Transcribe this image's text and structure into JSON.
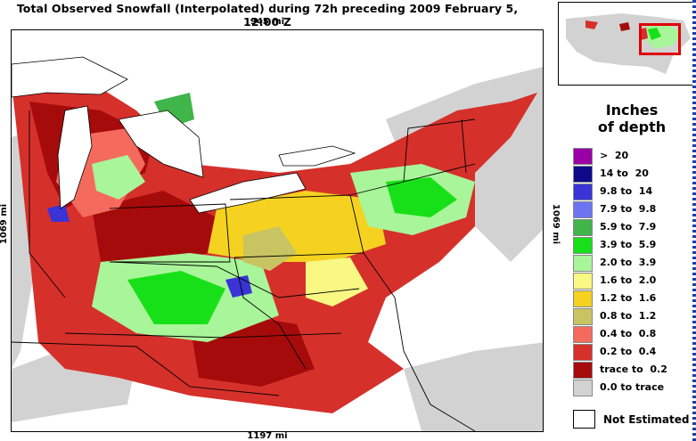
{
  "title": "Total Observed Snowfall (Interpolated) during 72h preceding 2009 February 5, 12:00 Z",
  "dimensions": {
    "top": "945 mi",
    "bottom": "1197 mi",
    "left": "1069 mi",
    "right": "1069 mi"
  },
  "legend": {
    "title_line1": "Inches",
    "title_line2": "of depth",
    "items": [
      {
        "label": ">  20",
        "color": "#9b00a6"
      },
      {
        "label": "14 to  20",
        "color": "#0e0a8a"
      },
      {
        "label": "9.8 to  14",
        "color": "#3a33d6"
      },
      {
        "label": "7.9 to  9.8",
        "color": "#6d74f2"
      },
      {
        "label": "5.9 to  7.9",
        "color": "#3fb54a"
      },
      {
        "label": "3.9 to  5.9",
        "color": "#18e018"
      },
      {
        "label": "2.0 to  3.9",
        "color": "#a9f59a"
      },
      {
        "label": "1.6 to  2.0",
        "color": "#f8f882"
      },
      {
        "label": "1.2 to  1.6",
        "color": "#f4d21f"
      },
      {
        "label": "0.8 to  1.2",
        "color": "#c9c462"
      },
      {
        "label": "0.4 to  0.8",
        "color": "#f46a5c"
      },
      {
        "label": "0.2 to  0.4",
        "color": "#d6302b"
      },
      {
        "label": "trace to  0.2",
        "color": "#a60b0b"
      },
      {
        "label": "0.0 to trace",
        "color": "#d2d2d2"
      }
    ],
    "not_estimated": "Not Estimated"
  }
}
